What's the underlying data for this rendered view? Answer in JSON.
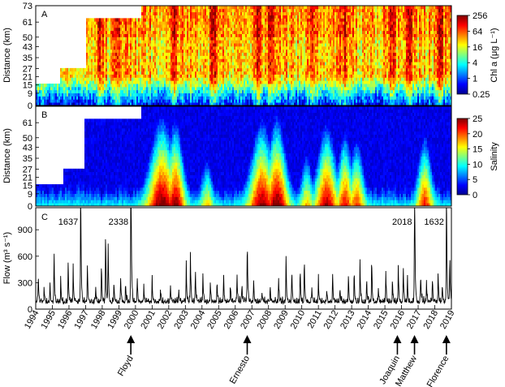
{
  "chart_data": [
    {
      "panel": "A",
      "type": "heatmap",
      "ylabel": "Distance (km)",
      "yticks": [
        0,
        9,
        15,
        21,
        27,
        35,
        43,
        50,
        61,
        73
      ],
      "ylim": [
        0,
        73
      ],
      "xlim": [
        1994,
        2019
      ],
      "colorbar": {
        "label": "Chl a (μg L⁻¹)",
        "scale": "log",
        "ticks": [
          "256",
          "64",
          "16",
          "4",
          "1",
          "0.25"
        ],
        "range": [
          0.25,
          256
        ]
      },
      "coverage": [
        {
          "from": 1994.0,
          "to": 1995.5,
          "maxKm": 15
        },
        {
          "from": 1995.5,
          "to": 1997.0,
          "maxKm": 27
        },
        {
          "from": 1997.0,
          "to": 2000.3,
          "maxKm": 65
        },
        {
          "from": 2000.3,
          "to": 2019.0,
          "maxKm": 73
        }
      ],
      "peakYears": [
        1997.9,
        1999.0,
        2002.3,
        2004.7,
        2007.4,
        2008.2,
        2010.6,
        2012.5,
        2015.4,
        2016.5,
        2018.3
      ]
    },
    {
      "panel": "B",
      "type": "heatmap",
      "ylabel": "Distance (km)",
      "yticks": [
        0,
        9,
        15,
        21,
        27,
        35,
        43,
        50,
        61
      ],
      "ylim": [
        0,
        73
      ],
      "xlim": [
        1994,
        2019
      ],
      "colorbar": {
        "label": "Salinity",
        "scale": "linear",
        "ticks": [
          "25",
          "20",
          "15",
          "10",
          "5",
          "0"
        ],
        "range": [
          0,
          25
        ]
      },
      "coverage": [
        {
          "from": 1994.0,
          "to": 1995.7,
          "maxKm": 15
        },
        {
          "from": 1995.7,
          "to": 1996.9,
          "maxKm": 27
        },
        {
          "from": 1996.9,
          "to": 2000.3,
          "maxKm": 65
        },
        {
          "from": 2000.3,
          "to": 2019.0,
          "maxKm": 73
        }
      ],
      "salineEpisodes": [
        {
          "center": 2001.6,
          "width": 0.9,
          "intensity": 1.0
        },
        {
          "center": 2002.4,
          "width": 0.6,
          "intensity": 0.95
        },
        {
          "center": 2007.6,
          "width": 0.8,
          "intensity": 0.95
        },
        {
          "center": 2008.5,
          "width": 0.7,
          "intensity": 1.0
        },
        {
          "center": 2011.5,
          "width": 0.7,
          "intensity": 0.9
        },
        {
          "center": 2012.6,
          "width": 0.5,
          "intensity": 0.8
        },
        {
          "center": 2013.3,
          "width": 0.5,
          "intensity": 0.7
        },
        {
          "center": 2017.4,
          "width": 0.5,
          "intensity": 0.75
        },
        {
          "center": 2004.3,
          "width": 0.4,
          "intensity": 0.45
        },
        {
          "center": 2010.3,
          "width": 0.4,
          "intensity": 0.5
        }
      ]
    },
    {
      "panel": "C",
      "type": "line",
      "ylabel": "Flow (m³ s⁻¹)",
      "yticks": [
        0,
        300,
        600,
        900
      ],
      "ylim": [
        0,
        1150
      ],
      "xlim": [
        1994,
        2019
      ],
      "xticks": [
        "1994",
        "1995",
        "1996",
        "1997",
        "1998",
        "1999",
        "2000",
        "2001",
        "2002",
        "2003",
        "2004",
        "2005",
        "2006",
        "2007",
        "2008",
        "2009",
        "2010",
        "2011",
        "2012",
        "2013",
        "2014",
        "2015",
        "2016",
        "2017",
        "2018",
        "2019"
      ],
      "baseFlow": 60,
      "peaks": [
        {
          "x": 1994.15,
          "y": 420
        },
        {
          "x": 1994.5,
          "y": 250
        },
        {
          "x": 1994.85,
          "y": 300
        },
        {
          "x": 1995.1,
          "y": 740
        },
        {
          "x": 1995.5,
          "y": 330
        },
        {
          "x": 1995.95,
          "y": 610
        },
        {
          "x": 1996.25,
          "y": 480
        },
        {
          "x": 1996.7,
          "y": 1637
        },
        {
          "x": 1997.1,
          "y": 540
        },
        {
          "x": 1997.6,
          "y": 280
        },
        {
          "x": 1997.95,
          "y": 560
        },
        {
          "x": 1998.2,
          "y": 950
        },
        {
          "x": 1998.35,
          "y": 900
        },
        {
          "x": 1998.7,
          "y": 330
        },
        {
          "x": 1999.1,
          "y": 390
        },
        {
          "x": 1999.4,
          "y": 300
        },
        {
          "x": 1999.72,
          "y": 2338
        },
        {
          "x": 2000.1,
          "y": 420
        },
        {
          "x": 2000.5,
          "y": 260
        },
        {
          "x": 2001.0,
          "y": 320
        },
        {
          "x": 2001.5,
          "y": 200
        },
        {
          "x": 2002.1,
          "y": 280
        },
        {
          "x": 2002.6,
          "y": 180
        },
        {
          "x": 2003.05,
          "y": 560
        },
        {
          "x": 2003.3,
          "y": 720
        },
        {
          "x": 2003.6,
          "y": 480
        },
        {
          "x": 2004.05,
          "y": 420
        },
        {
          "x": 2004.5,
          "y": 300
        },
        {
          "x": 2004.9,
          "y": 360
        },
        {
          "x": 2005.3,
          "y": 410
        },
        {
          "x": 2005.7,
          "y": 260
        },
        {
          "x": 2006.1,
          "y": 450
        },
        {
          "x": 2006.4,
          "y": 300
        },
        {
          "x": 2006.72,
          "y": 930
        },
        {
          "x": 2007.1,
          "y": 350
        },
        {
          "x": 2007.6,
          "y": 200
        },
        {
          "x": 2008.1,
          "y": 230
        },
        {
          "x": 2008.6,
          "y": 380
        },
        {
          "x": 2009.05,
          "y": 650
        },
        {
          "x": 2009.4,
          "y": 500
        },
        {
          "x": 2009.9,
          "y": 540
        },
        {
          "x": 2010.15,
          "y": 650
        },
        {
          "x": 2010.6,
          "y": 260
        },
        {
          "x": 2011.0,
          "y": 340
        },
        {
          "x": 2011.5,
          "y": 180
        },
        {
          "x": 2011.85,
          "y": 430
        },
        {
          "x": 2012.3,
          "y": 210
        },
        {
          "x": 2012.8,
          "y": 390
        },
        {
          "x": 2013.15,
          "y": 460
        },
        {
          "x": 2013.5,
          "y": 550
        },
        {
          "x": 2013.9,
          "y": 350
        },
        {
          "x": 2014.2,
          "y": 620
        },
        {
          "x": 2014.6,
          "y": 280
        },
        {
          "x": 2015.05,
          "y": 450
        },
        {
          "x": 2015.45,
          "y": 360
        },
        {
          "x": 2015.8,
          "y": 520
        },
        {
          "x": 2016.1,
          "y": 540
        },
        {
          "x": 2016.35,
          "y": 420
        },
        {
          "x": 2016.78,
          "y": 2018
        },
        {
          "x": 2017.15,
          "y": 430
        },
        {
          "x": 2017.5,
          "y": 300
        },
        {
          "x": 2017.85,
          "y": 360
        },
        {
          "x": 2018.2,
          "y": 420
        },
        {
          "x": 2018.45,
          "y": 300
        },
        {
          "x": 2018.7,
          "y": 1632
        },
        {
          "x": 2018.9,
          "y": 720
        }
      ],
      "annotations": [
        {
          "text": "1637",
          "x": 1996.7
        },
        {
          "text": "2338",
          "x": 1999.72
        },
        {
          "text": "2018",
          "x": 2016.78
        },
        {
          "text": "1632",
          "x": 2018.7
        }
      ]
    }
  ],
  "panel_labels": [
    "A",
    "B",
    "C"
  ],
  "events": [
    {
      "name": "Floyd",
      "x": 1999.72
    },
    {
      "name": "Ernesto",
      "x": 2006.72
    },
    {
      "name": "Joaquin",
      "x": 2015.75
    },
    {
      "name": "Matthew",
      "x": 2016.78
    },
    {
      "name": "Florence",
      "x": 2018.7
    }
  ]
}
